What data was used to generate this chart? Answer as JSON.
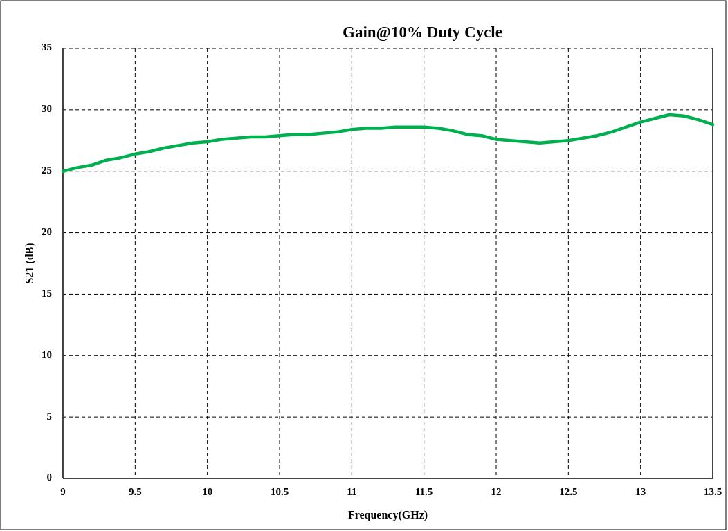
{
  "chart_data": {
    "type": "line",
    "title": "Gain@10% Duty Cycle",
    "xlabel": "Frequency(GHz)",
    "ylabel": "S21 (dB)",
    "x": [
      9,
      9.1,
      9.2,
      9.3,
      9.4,
      9.5,
      9.6,
      9.7,
      9.8,
      9.9,
      10,
      10.1,
      10.2,
      10.3,
      10.4,
      10.5,
      10.6,
      10.7,
      10.8,
      10.9,
      11,
      11.1,
      11.2,
      11.3,
      11.4,
      11.5,
      11.6,
      11.7,
      11.8,
      11.9,
      12,
      12.1,
      12.2,
      12.3,
      12.4,
      12.5,
      12.6,
      12.7,
      12.8,
      12.9,
      13,
      13.1,
      13.2,
      13.3,
      13.4,
      13.5
    ],
    "series": [
      {
        "color": "#00b050",
        "values": [
          25.0,
          25.3,
          25.5,
          25.9,
          26.1,
          26.4,
          26.6,
          26.9,
          27.1,
          27.3,
          27.4,
          27.6,
          27.7,
          27.8,
          27.8,
          27.9,
          28.0,
          28.0,
          28.1,
          28.2,
          28.4,
          28.5,
          28.5,
          28.6,
          28.6,
          28.6,
          28.5,
          28.3,
          28.0,
          27.9,
          27.6,
          27.5,
          27.4,
          27.3,
          27.4,
          27.5,
          27.7,
          27.9,
          28.2,
          28.6,
          29.0,
          29.3,
          29.6,
          29.5,
          29.2,
          28.8
        ]
      }
    ],
    "xlim": [
      9,
      13.5
    ],
    "ylim": [
      0,
      35
    ],
    "xticks": [
      9,
      9.5,
      10,
      10.5,
      11,
      11.5,
      12,
      12.5,
      13,
      13.5
    ],
    "yticks": [
      0,
      5,
      10,
      15,
      20,
      25,
      30,
      35
    ],
    "grid": true,
    "line_style": "solid"
  }
}
